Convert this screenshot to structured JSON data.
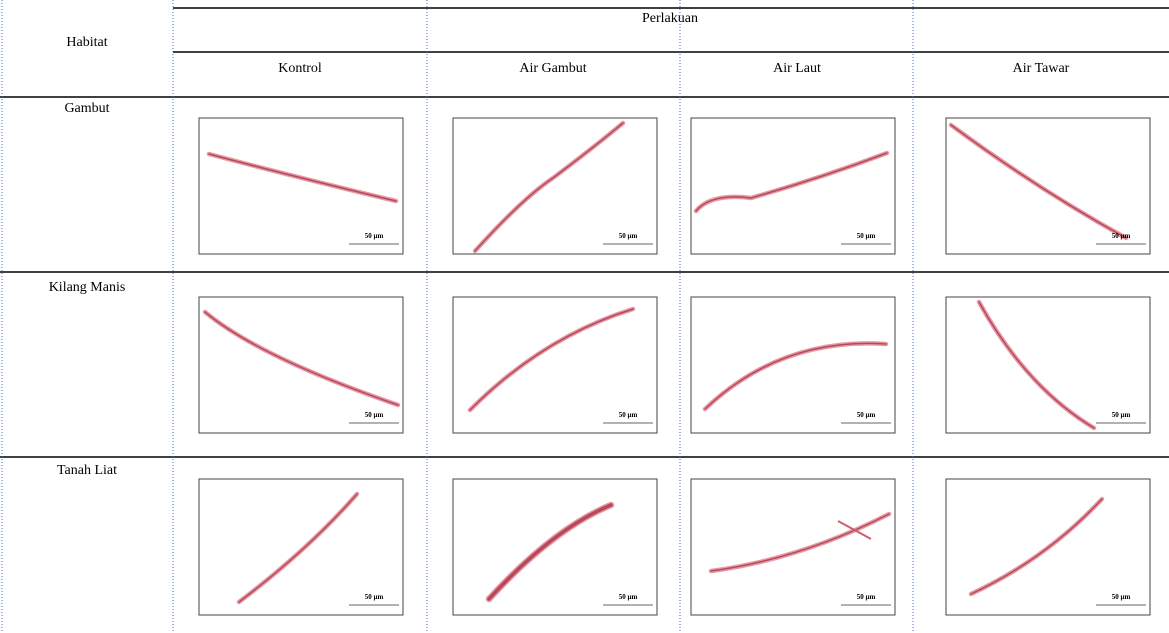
{
  "table": {
    "header": {
      "row_label": "Habitat",
      "group": "Perlakuan",
      "columns": [
        "Kontrol",
        "Air Gambut",
        "Air Laut",
        "Air Tawar"
      ]
    },
    "rows": [
      "Gambut",
      "Kilang Manis",
      "Tanah Liat"
    ],
    "scale_bar_label": "50 µm"
  }
}
